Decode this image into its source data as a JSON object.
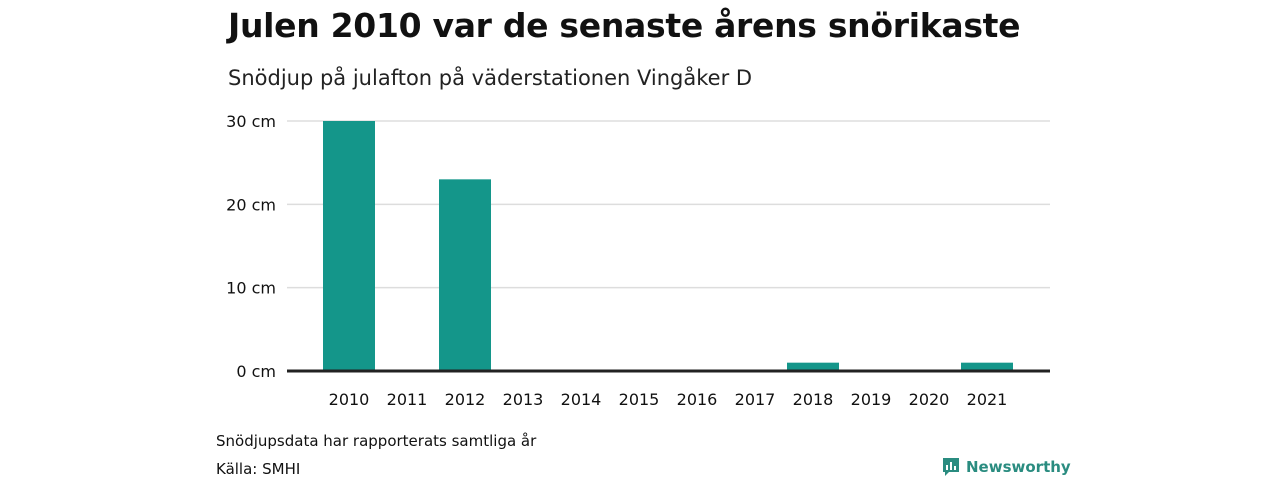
{
  "title": "Julen 2010 var de senaste årens snörikaste",
  "subtitle": "Snödjup på julafton på väderstationen Vingåker D",
  "footnote": "Snödjupsdata har rapporterats samtliga år",
  "source": "Källa: SMHI",
  "brand": {
    "name": "Newsworthy",
    "icon": "newsworthy-logo-icon"
  },
  "colors": {
    "bar": "#14968a",
    "grid": "#dddddd",
    "axis": "#222222",
    "brand": "#2a8c80"
  },
  "chart_data": {
    "type": "bar",
    "title": "Julen 2010 var de senaste årens snörikaste",
    "subtitle": "Snödjup på julafton på väderstationen Vingåker D",
    "categories": [
      "2010",
      "2011",
      "2012",
      "2013",
      "2014",
      "2015",
      "2016",
      "2017",
      "2018",
      "2019",
      "2020",
      "2021"
    ],
    "values": [
      30,
      0,
      23,
      0,
      0,
      0,
      0,
      0,
      1,
      0,
      0,
      1
    ],
    "yticks": [
      0,
      10,
      20,
      30
    ],
    "ytick_labels": [
      "0 cm",
      "10 cm",
      "20 cm",
      "30 cm"
    ],
    "ylim": [
      0,
      30
    ],
    "grid": true,
    "legend": "none"
  }
}
